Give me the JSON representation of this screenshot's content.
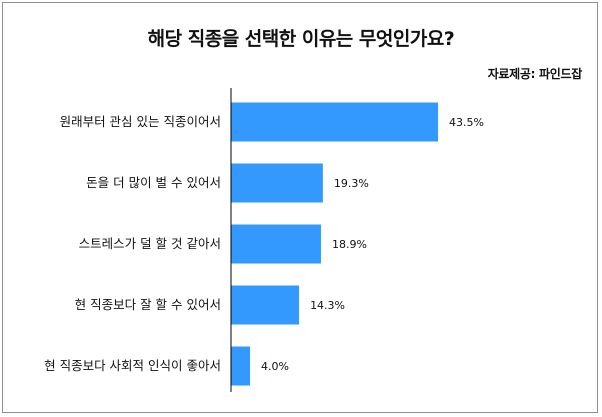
{
  "chart_data": {
    "type": "bar",
    "orientation": "horizontal",
    "title": "해당 직종을 선택한 이유는 무엇인가요?",
    "source": "자료제공: 파인드잡",
    "categories": [
      "원래부터 관심 있는 직종이어서",
      "돈을 더 많이 벌 수 있어서",
      "스트레스가 덜 할 것 같아서",
      "현 직종보다 잘 할 수 있어서",
      "현 직종보다 사회적 인식이 좋아서"
    ],
    "values": [
      43.5,
      19.3,
      18.9,
      14.3,
      4.0
    ],
    "value_labels": [
      "43.5%",
      "19.3%",
      "18.9%",
      "14.3%",
      "4.0%"
    ],
    "unit": "%",
    "xlabel": "",
    "ylabel": "",
    "xlim": [
      0,
      50
    ],
    "grid": false,
    "legend": "none",
    "bar_color": "#3399ff",
    "axis_color": "#000000"
  }
}
